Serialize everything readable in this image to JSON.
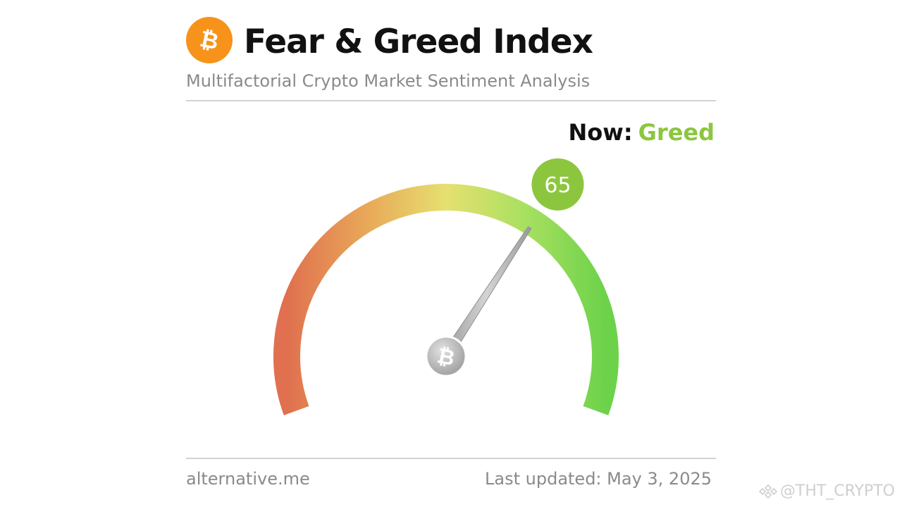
{
  "header": {
    "logo_icon": "bitcoin-icon",
    "title": "Fear & Greed Index",
    "subtitle": "Multifactorial Crypto Market Sentiment Analysis"
  },
  "status": {
    "prefix": "Now:",
    "classification": "Greed",
    "classification_color": "#8cc63f"
  },
  "gauge": {
    "value": 65,
    "value_label": "65",
    "min": 0,
    "max": 100,
    "badge_color": "#8cc63f",
    "gradient_colors": [
      "#e0704f",
      "#e8a858",
      "#e6e070",
      "#a8e060",
      "#6cd24a"
    ],
    "center_icon": "bitcoin-icon"
  },
  "footer": {
    "source": "alternative.me",
    "last_updated": "Last updated: May 3, 2025"
  },
  "watermark": {
    "icon": "binance-square-icon",
    "text": "@THT_CRYPTO"
  },
  "colors": {
    "brand_orange": "#f7931a",
    "title": "#111111",
    "muted": "#8a8a8a"
  }
}
